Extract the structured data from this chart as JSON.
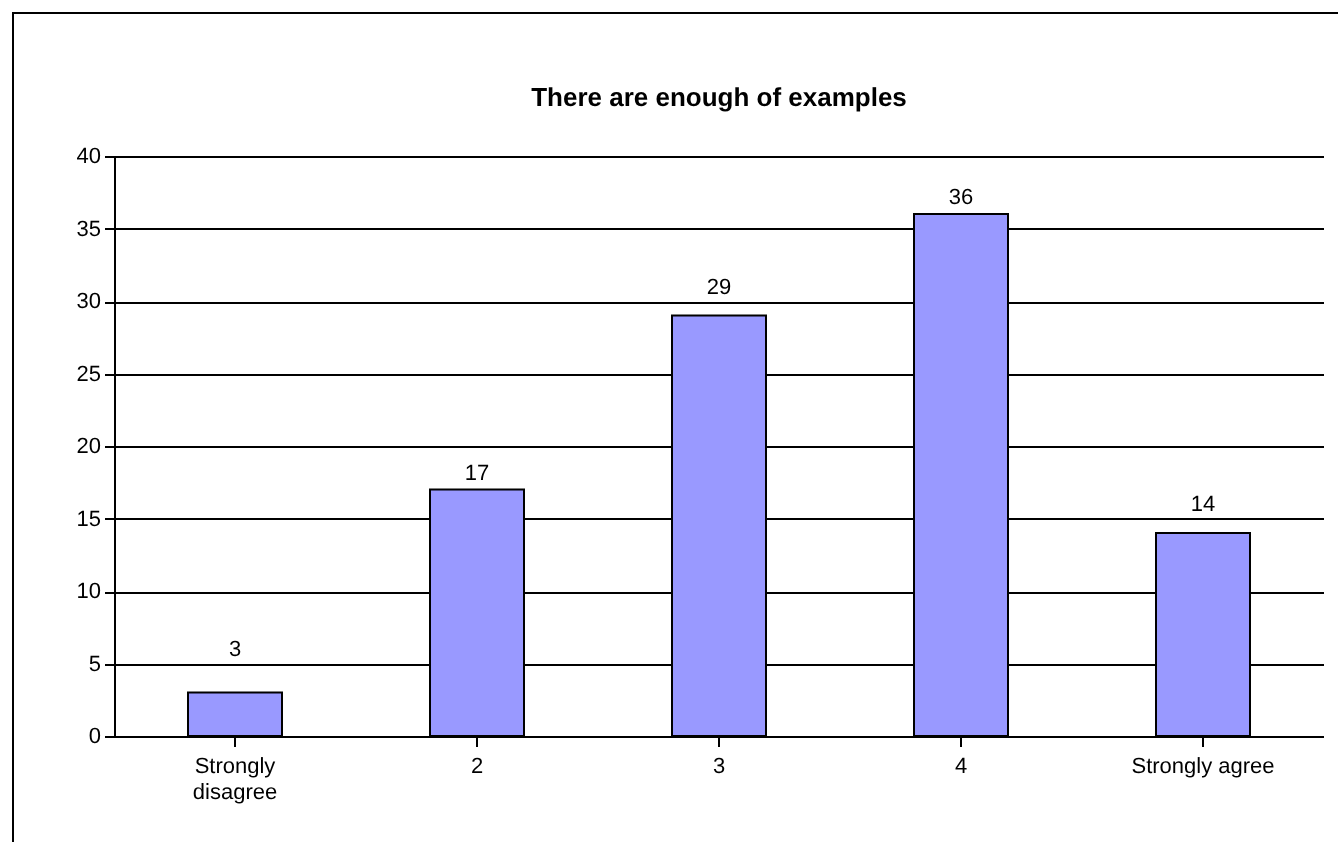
{
  "chart_data": {
    "type": "bar",
    "title": "There are enough of examples",
    "categories": [
      "Strongly disagree",
      "2",
      "3",
      "4",
      "Strongly agree"
    ],
    "values": [
      3,
      17,
      29,
      36,
      14
    ],
    "color": "#9999ff",
    "ylim": [
      0,
      40
    ],
    "yticks": [
      0,
      5,
      10,
      15,
      20,
      25,
      30,
      35,
      40
    ],
    "grid": "y",
    "data_labels": true
  }
}
